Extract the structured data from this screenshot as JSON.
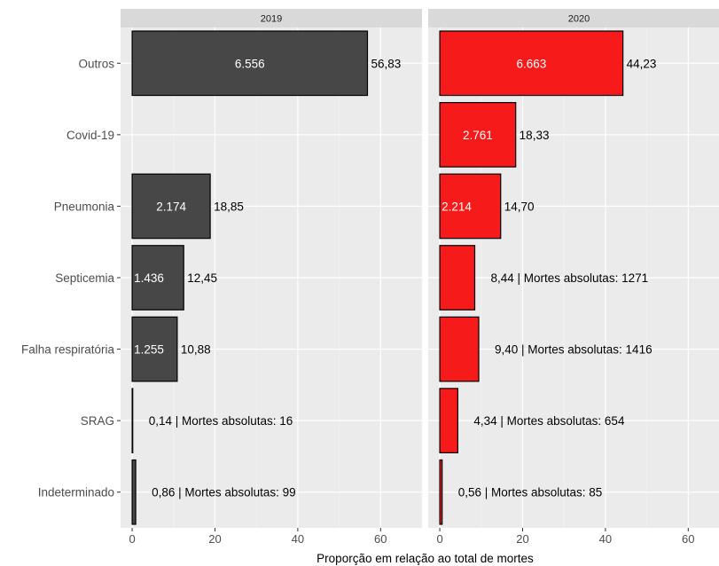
{
  "chart_data": {
    "type": "bar",
    "orientation": "horizontal",
    "xlabel": "Proporção em relação ao total de mortes",
    "xlim": [
      -2.8,
      70
    ],
    "xticks": [
      "0",
      "20",
      "40",
      "60"
    ],
    "xtick_values": [
      0,
      20,
      40,
      60
    ],
    "grid": true,
    "categories": [
      "Outros",
      "Covid-19",
      "Pneumonia",
      "Septicemia",
      "Falha respiratória",
      "SRAG",
      "Indeterminado"
    ],
    "panels": [
      {
        "name": "2019",
        "color": "#474747",
        "values": [
          56.83,
          null,
          18.85,
          12.45,
          10.88,
          0.14,
          0.86
        ],
        "inside_labels": [
          "6.556",
          "",
          "2.174",
          "1.436",
          "1.255",
          "",
          ""
        ],
        "outside_labels": [
          "56,83",
          "",
          "18,85",
          "12,45",
          "10,88",
          "0,14 | Mortes absolutas: 16",
          "0,86 | Mortes absolutas: 99"
        ]
      },
      {
        "name": "2020",
        "color": "#f61a1a",
        "values": [
          44.23,
          18.33,
          14.7,
          8.44,
          9.4,
          4.34,
          0.56
        ],
        "inside_labels": [
          "6.663",
          "2.761",
          "2.214",
          "",
          "",
          "",
          ""
        ],
        "outside_labels": [
          "44,23",
          "18,33",
          "14,70",
          "8,44 | Mortes absolutas: 1271",
          "9,40 | Mortes absolutas: 1416",
          "4,34 | Mortes absolutas: 654",
          "0,56 | Mortes absolutas: 85"
        ]
      }
    ]
  }
}
